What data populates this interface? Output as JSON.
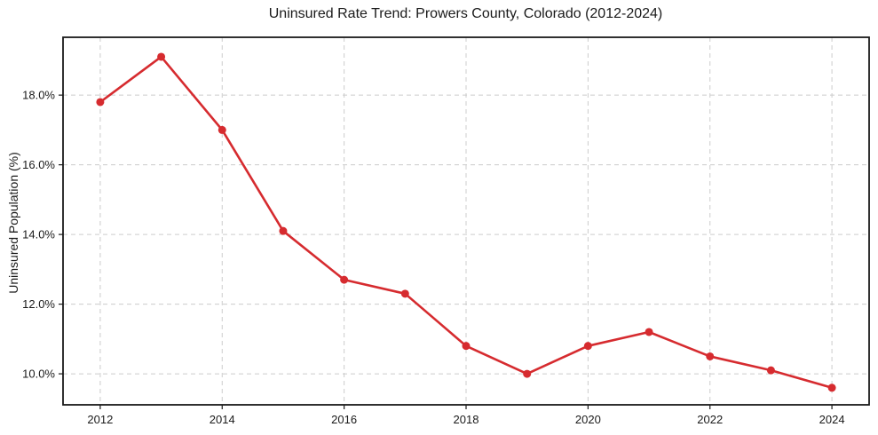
{
  "chart_data": {
    "type": "line",
    "title": "Uninsured Rate Trend: Prowers County, Colorado (2012-2024)",
    "xlabel": "",
    "ylabel": "Uninsured Population (%)",
    "x": [
      2012,
      2013,
      2014,
      2015,
      2016,
      2017,
      2018,
      2019,
      2020,
      2021,
      2022,
      2023,
      2024
    ],
    "values": [
      17.8,
      19.1,
      17.0,
      14.1,
      12.7,
      12.3,
      10.8,
      10.0,
      10.8,
      11.2,
      10.5,
      10.1,
      9.6
    ],
    "xticks": {
      "values": [
        2012,
        2014,
        2016,
        2018,
        2020,
        2022,
        2024
      ],
      "labels": [
        "2012",
        "2014",
        "2016",
        "2018",
        "2020",
        "2022",
        "2024"
      ]
    },
    "yticks": {
      "values": [
        10,
        12,
        14,
        16,
        18
      ],
      "labels": [
        "10.0%",
        "12.0%",
        "14.0%",
        "16.0%",
        "18.0%"
      ]
    },
    "xlim": [
      2011.39,
      2024.61
    ],
    "ylim": [
      9.11,
      19.66
    ],
    "grid": true,
    "grid_style": "dashed",
    "legend": "none",
    "marker": "circle",
    "colors": {
      "line": "#d62b2f",
      "grid": "#cccccc",
      "spine": "#1a1a1a",
      "text": "#1a1a1a",
      "background": "#ffffff"
    }
  }
}
